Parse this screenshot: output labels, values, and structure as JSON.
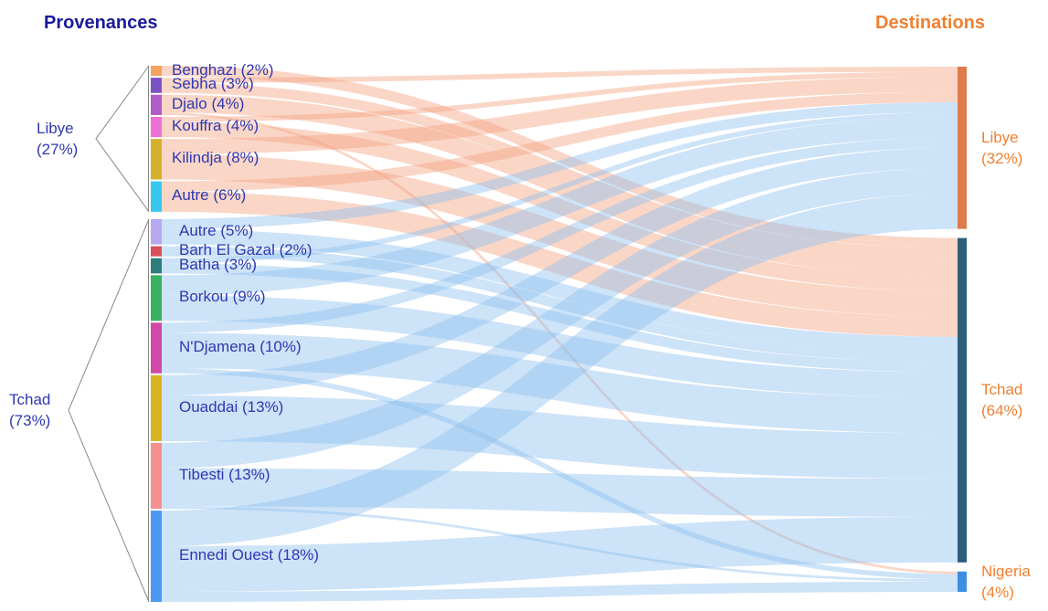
{
  "chart_data": {
    "type": "sankey",
    "left_title": "Provenances",
    "right_title": "Destinations",
    "groups": [
      {
        "label": "Libye (27%)",
        "value": 27,
        "flow_color": "#f4a582",
        "nodes": [
          {
            "label": "Benghazi (2%)",
            "value": 2,
            "color": "#f4a460",
            "flows": [
              0,
              2,
              0
            ]
          },
          {
            "label": "Sebha (3%)",
            "value": 3,
            "color": "#7b52c4",
            "flows": [
              1,
              2,
              0
            ]
          },
          {
            "label": "Djalo (4%)",
            "value": 4,
            "color": "#b05cc8",
            "flows": [
              0,
              3.5,
              0.5
            ]
          },
          {
            "label": "Kouffra (4%)",
            "value": 4,
            "color": "#ee6fd6",
            "flows": [
              1,
              3,
              0
            ]
          },
          {
            "label": "Kilindja (8%)",
            "value": 8,
            "color": "#d4b12a",
            "flows": [
              3,
              5,
              0
            ]
          },
          {
            "label": "Autre (6%)",
            "value": 6,
            "color": "#36c8ec",
            "flows": [
              2,
              4,
              0
            ]
          }
        ]
      },
      {
        "label": "Tchad (73%)",
        "value": 73,
        "flow_color": "#90c0f0",
        "nodes": [
          {
            "label": "Autre (5%)",
            "value": 5,
            "color": "#b8a8f0",
            "flows": [
              2,
              3,
              0
            ]
          },
          {
            "label": "Barh El Gazal (2%)",
            "value": 2,
            "color": "#d8505a",
            "flows": [
              0,
              2,
              0
            ]
          },
          {
            "label": "Batha (3%)",
            "value": 3,
            "color": "#2e7d7d",
            "flows": [
              1,
              2,
              0
            ]
          },
          {
            "label": "Borkou (9%)",
            "value": 9,
            "color": "#38b060",
            "flows": [
              4,
              5,
              0
            ]
          },
          {
            "label": "N'Djamena (10%)",
            "value": 10,
            "color": "#d048a8",
            "flows": [
              2,
              7,
              1
            ]
          },
          {
            "label": "Ouaddai (13%)",
            "value": 13,
            "color": "#d8b420",
            "flows": [
              4,
              9,
              0
            ]
          },
          {
            "label": "Tibesti (13%)",
            "value": 13,
            "color": "#f49090",
            "flows": [
              5,
              7.5,
              0.5
            ]
          },
          {
            "label": "Ennedi Ouest (18%)",
            "value": 18,
            "color": "#4a98f0",
            "flows": [
              7,
              9,
              2
            ]
          }
        ]
      }
    ],
    "destinations": [
      {
        "label": "Libye (32%)",
        "value": 32,
        "color": "#e07b4a"
      },
      {
        "label": "Tchad (64%)",
        "value": 64,
        "color": "#2a5f7a"
      },
      {
        "label": "Nigeria (4%)",
        "value": 4,
        "color": "#3a8fe0"
      }
    ]
  }
}
